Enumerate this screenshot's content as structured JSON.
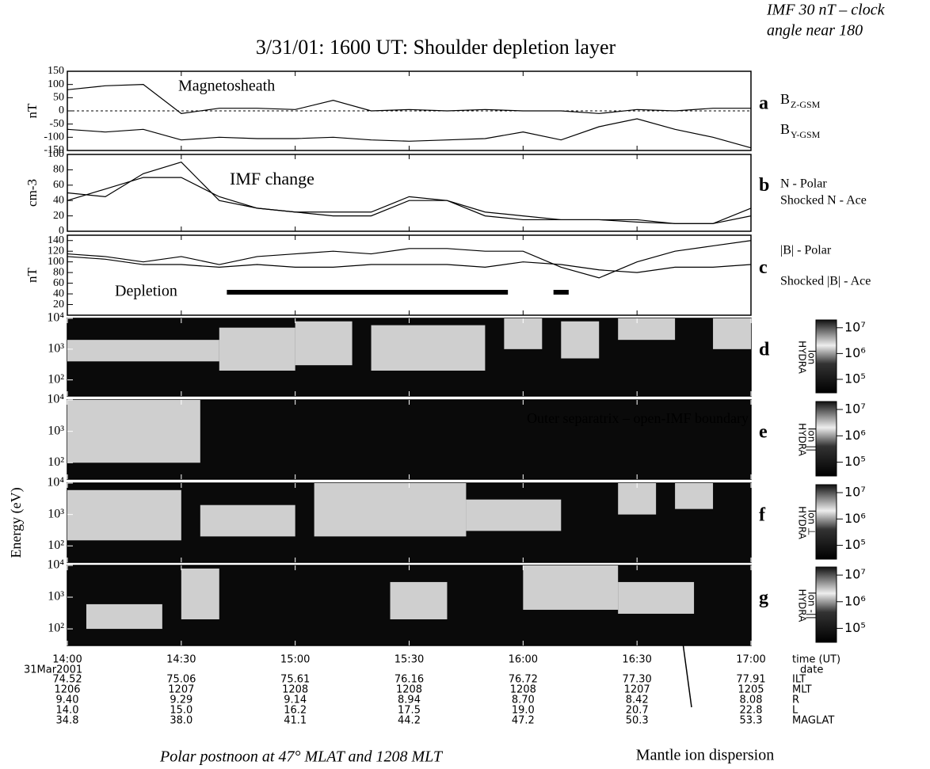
{
  "title": "3/31/01: 1600 UT: Shoulder depletion layer",
  "annotation": [
    "IMF 30 nT – clock",
    "angle near 180"
  ],
  "energy_label": "Energy (eV)",
  "time_axis": {
    "xlim": [
      "14:00",
      "17:00"
    ],
    "xticks": [
      "14:00",
      "14:30",
      "15:00",
      "15:30",
      "16:00",
      "16:30",
      "17:00"
    ],
    "x": [
      "14:00",
      "14:10",
      "14:20",
      "14:30",
      "14:40",
      "14:50",
      "15:00",
      "15:10",
      "15:20",
      "15:30",
      "15:40",
      "15:50",
      "16:00",
      "16:10",
      "16:20",
      "16:30",
      "16:40",
      "16:50",
      "17:00"
    ]
  },
  "colorbar": {
    "log": true,
    "lim": [
      30000,
      20000000
    ],
    "ticks": [
      {
        "value": 100000,
        "label": "10⁵"
      },
      {
        "value": 1000000,
        "label": "10⁶"
      },
      {
        "value": 10000000,
        "label": "10⁷"
      }
    ]
  },
  "chart_data": [
    {
      "type": "line",
      "letter": "a",
      "ylabel": "nT",
      "ylim": [
        -150,
        150
      ],
      "yticks": [
        -150,
        -100,
        -50,
        0,
        50,
        100,
        150
      ],
      "reference_line": 0,
      "annotations": [
        "Magnetosheath"
      ],
      "series": [
        {
          "name": "B",
          "subscript": "Z-GSM",
          "color": "#000000",
          "values": [
            80,
            95,
            100,
            -10,
            10,
            10,
            5,
            40,
            0,
            5,
            0,
            5,
            0,
            0,
            -10,
            5,
            0,
            10,
            10
          ]
        },
        {
          "name": "B",
          "subscript": "Y-GSM",
          "color": "#000000",
          "values": [
            -70,
            -80,
            -70,
            -110,
            -100,
            -105,
            -105,
            -100,
            -110,
            -115,
            -110,
            -105,
            -80,
            -110,
            -60,
            -30,
            -70,
            -100,
            -140
          ]
        }
      ]
    },
    {
      "type": "line",
      "letter": "b",
      "ylabel": "cm-3",
      "ylim": [
        0,
        100
      ],
      "yticks": [
        0,
        20,
        40,
        60,
        80,
        100
      ],
      "annotations": [
        "IMF change"
      ],
      "series": [
        {
          "name": "N - Polar",
          "color": "#000000",
          "values": [
            50,
            45,
            75,
            90,
            40,
            30,
            25,
            25,
            25,
            45,
            40,
            25,
            20,
            15,
            15,
            15,
            10,
            10,
            30
          ]
        },
        {
          "name": "Shocked N - Ace",
          "color": "#000000",
          "values": [
            40,
            55,
            70,
            70,
            45,
            30,
            25,
            20,
            20,
            40,
            40,
            20,
            15,
            15,
            15,
            12,
            10,
            10,
            20
          ]
        }
      ]
    },
    {
      "type": "line",
      "letter": "c",
      "ylabel": "nT",
      "ylim": [
        0,
        150
      ],
      "yticks": [
        20,
        40,
        60,
        80,
        100,
        120,
        140
      ],
      "annotations": [
        "Depletion"
      ],
      "depletion_intervals": [
        {
          "start": "14:42",
          "end": "15:56"
        },
        {
          "start": "16:08",
          "end": "16:12"
        }
      ],
      "series": [
        {
          "name": "|B| - Polar",
          "color": "#000000",
          "values": [
            115,
            110,
            100,
            110,
            95,
            110,
            115,
            120,
            115,
            125,
            125,
            120,
            120,
            90,
            70,
            100,
            120,
            130,
            140
          ]
        },
        {
          "name": "Shocked |B| - Ace",
          "color": "#000000",
          "values": [
            110,
            105,
            95,
            95,
            90,
            95,
            90,
            90,
            95,
            95,
            95,
            90,
            100,
            95,
            85,
            80,
            90,
            90,
            95
          ]
        }
      ]
    },
    {
      "type": "spectrogram",
      "letter": "d",
      "log": true,
      "ylim": [
        30,
        10000
      ],
      "yticks": [
        {
          "value": 100,
          "label": "10²"
        },
        {
          "value": 1000,
          "label": "10³"
        },
        {
          "value": 10000,
          "label": "10⁴"
        }
      ],
      "instrument": "HYDRA",
      "species": "Ion",
      "bands": [
        {
          "start": "14:00",
          "end": "14:40",
          "low": 400,
          "high": 2000
        },
        {
          "start": "14:40",
          "end": "15:00",
          "low": 200,
          "high": 5000
        },
        {
          "start": "15:00",
          "end": "15:15",
          "low": 300,
          "high": 8000
        },
        {
          "start": "15:20",
          "end": "15:50",
          "low": 200,
          "high": 6000
        },
        {
          "start": "15:55",
          "end": "16:05",
          "low": 1000,
          "high": 10000
        },
        {
          "start": "16:10",
          "end": "16:20",
          "low": 500,
          "high": 8000
        },
        {
          "start": "16:25",
          "end": "16:40",
          "low": 2000,
          "high": 10000
        },
        {
          "start": "16:50",
          "end": "17:00",
          "low": 1000,
          "high": 10000
        }
      ]
    },
    {
      "type": "spectrogram",
      "letter": "e",
      "log": true,
      "ylim": [
        30,
        10000
      ],
      "yticks": [
        {
          "value": 100,
          "label": "10²"
        },
        {
          "value": 1000,
          "label": "10³"
        },
        {
          "value": 10000,
          "label": "10⁴"
        }
      ],
      "instrument": "HYDRA",
      "species": "Ion ||",
      "annotations": [
        "Outer separatrix – open-IMF boundary"
      ],
      "bands": [
        {
          "start": "14:00",
          "end": "14:35",
          "low": 100,
          "high": 10000
        }
      ]
    },
    {
      "type": "spectrogram",
      "letter": "f",
      "log": true,
      "ylim": [
        30,
        10000
      ],
      "yticks": [
        {
          "value": 100,
          "label": "10²"
        },
        {
          "value": 1000,
          "label": "10³"
        },
        {
          "value": 10000,
          "label": "10⁴"
        }
      ],
      "instrument": "HYDRA",
      "species": "Ion ⊥",
      "bands": [
        {
          "start": "14:00",
          "end": "14:30",
          "low": 150,
          "high": 6000
        },
        {
          "start": "14:35",
          "end": "15:00",
          "low": 200,
          "high": 2000
        },
        {
          "start": "15:05",
          "end": "15:45",
          "low": 200,
          "high": 10000
        },
        {
          "start": "15:45",
          "end": "16:10",
          "low": 300,
          "high": 3000
        },
        {
          "start": "16:25",
          "end": "16:35",
          "low": 1000,
          "high": 10000
        },
        {
          "start": "16:40",
          "end": "16:50",
          "low": 1500,
          "high": 10000
        }
      ]
    },
    {
      "type": "spectrogram",
      "letter": "g",
      "log": true,
      "ylim": [
        30,
        10000
      ],
      "yticks": [
        {
          "value": 100,
          "label": "10²"
        },
        {
          "value": 1000,
          "label": "10³"
        },
        {
          "value": 10000,
          "label": "10⁴"
        }
      ],
      "instrument": "HYDRA",
      "species": "Ion -||",
      "bands": [
        {
          "start": "14:05",
          "end": "14:25",
          "low": 100,
          "high": 600
        },
        {
          "start": "14:30",
          "end": "14:40",
          "low": 200,
          "high": 8000
        },
        {
          "start": "15:25",
          "end": "15:40",
          "low": 200,
          "high": 3000
        },
        {
          "start": "16:00",
          "end": "16:25",
          "low": 400,
          "high": 10000
        },
        {
          "start": "16:25",
          "end": "16:45",
          "low": 300,
          "high": 3000
        }
      ]
    }
  ],
  "ephemeris": {
    "time_label": "time (UT)",
    "date": "31Mar2001",
    "date_label": "date",
    "rows": [
      {
        "label": "ILT",
        "values": [
          "74.52",
          "75.06",
          "75.61",
          "76.16",
          "76.72",
          "77.30",
          "77.91"
        ]
      },
      {
        "label": "MLT",
        "values": [
          "1206",
          "1207",
          "1208",
          "1208",
          "1208",
          "1207",
          "1205"
        ]
      },
      {
        "label": "R",
        "values": [
          "9.40",
          "9.29",
          "9.14",
          "8.94",
          "8.70",
          "8.42",
          "8.08"
        ]
      },
      {
        "label": "L",
        "values": [
          "14.0",
          "15.0",
          "16.2",
          "17.5",
          "19.0",
          "20.7",
          "22.8"
        ]
      },
      {
        "label": "MAGLAT",
        "values": [
          "34.8",
          "38.0",
          "41.1",
          "44.2",
          "47.2",
          "50.3",
          "53.3"
        ]
      }
    ]
  },
  "caption": "Polar postnoon at 47° MLAT and 1208 MLT",
  "dispersion_label": "Mantle ion dispersion"
}
